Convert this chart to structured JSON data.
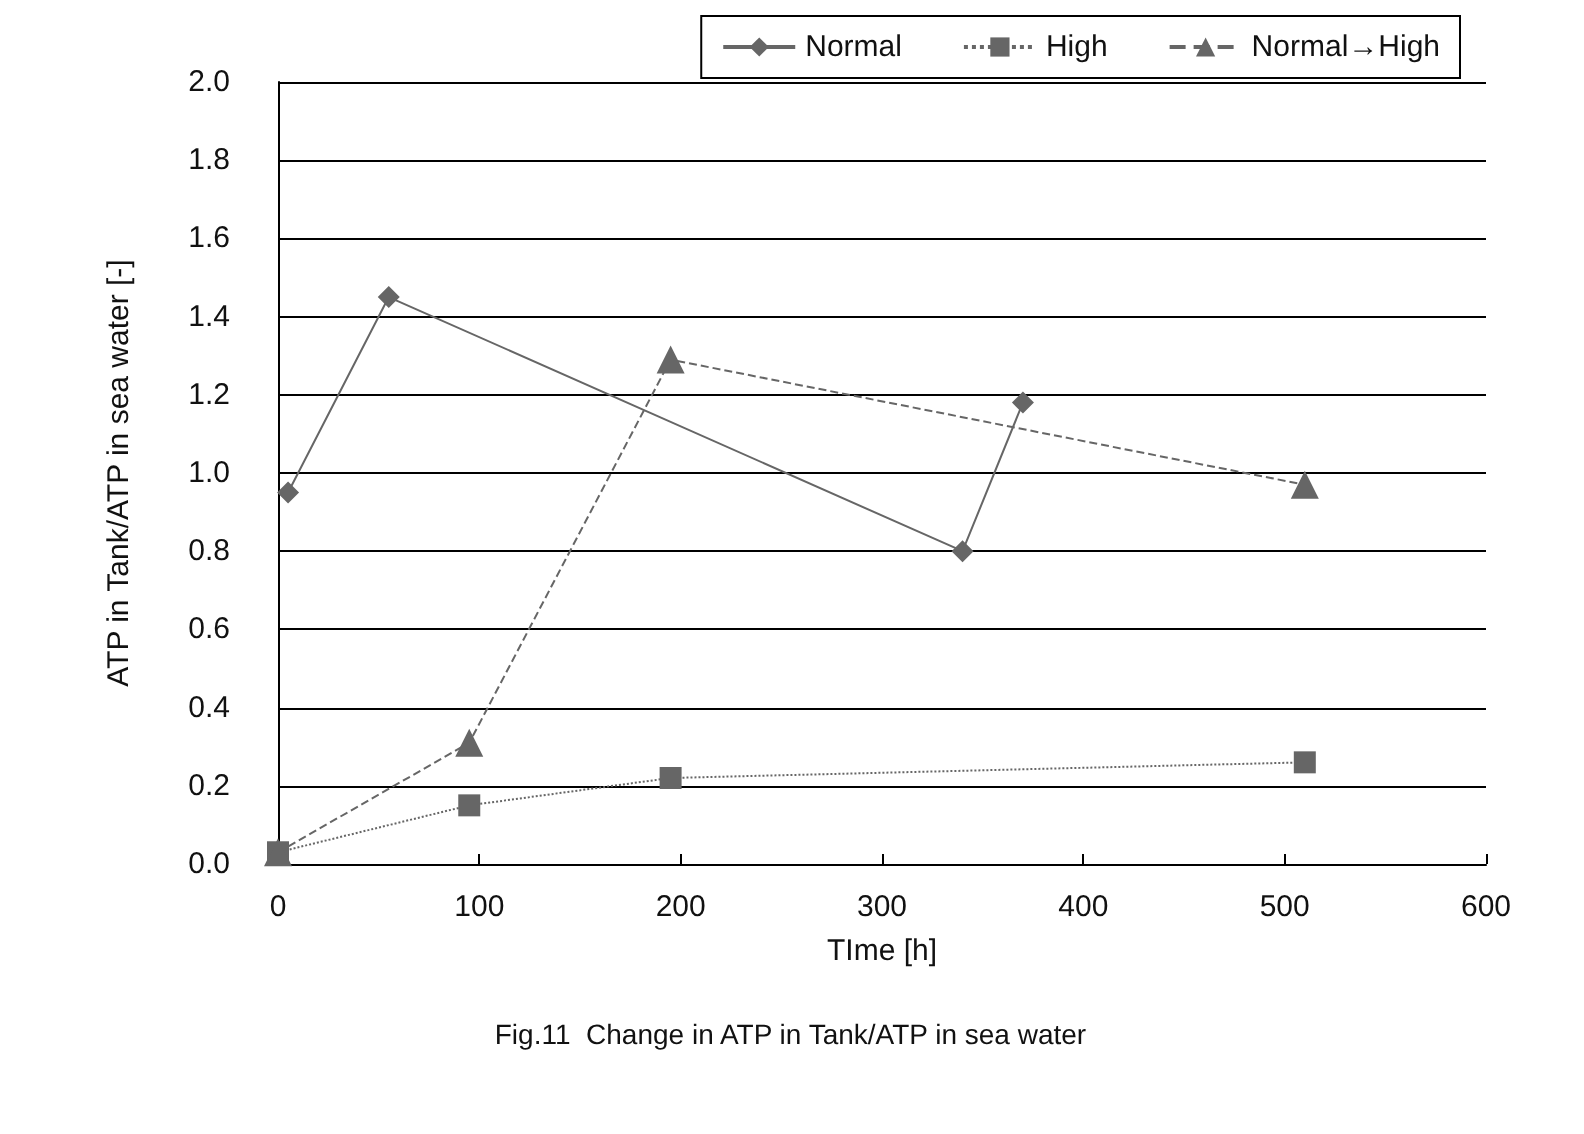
{
  "chart_data": {
    "type": "line",
    "xlabel": "TIme [h]",
    "ylabel": "ATP in Tank/ATP in sea water [-]",
    "annotations": [
      "Fig.11  Change in ATP in Tank/ATP in sea water"
    ],
    "series": [
      {
        "name": "Normal",
        "color": "#666666",
        "marker": "diamond",
        "line_style": "solid",
        "x": [
          5,
          55,
          340,
          370
        ],
        "values": [
          0.95,
          1.45,
          0.8,
          1.18
        ]
      },
      {
        "name": "High",
        "color": "#666666",
        "marker": "square",
        "line_style": "dotted",
        "x": [
          0,
          95,
          195,
          510
        ],
        "values": [
          0.03,
          0.15,
          0.22,
          0.26
        ]
      },
      {
        "name": "Normal→High",
        "color": "#666666",
        "marker": "triangle",
        "line_style": "dashed",
        "x": [
          0,
          95,
          195,
          510
        ],
        "values": [
          0.03,
          0.31,
          1.29,
          0.97
        ]
      }
    ],
    "xlim": [
      0,
      600
    ],
    "xticks": [
      0,
      100,
      200,
      300,
      400,
      500,
      600
    ],
    "ylim": [
      0,
      2
    ],
    "yticks": [
      {
        "value": 0,
        "label": "0.0"
      },
      0.2,
      0.4,
      0.6,
      0.8,
      {
        "value": 1,
        "label": "1.0"
      },
      1.2,
      1.4,
      1.6,
      1.8,
      {
        "value": 2,
        "label": "2.0"
      }
    ],
    "grid": "y",
    "legend": "top right"
  }
}
